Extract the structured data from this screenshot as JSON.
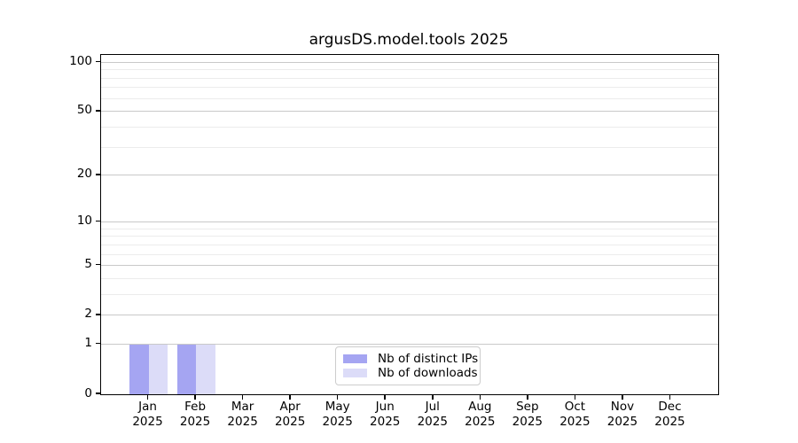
{
  "chart_data": {
    "type": "bar",
    "title": "argusDS.model.tools 2025",
    "categories": [
      "Jan",
      "Feb",
      "Mar",
      "Apr",
      "May",
      "Jun",
      "Jul",
      "Aug",
      "Sep",
      "Oct",
      "Nov",
      "Dec"
    ],
    "category_year": "2025",
    "series": [
      {
        "name": "Nb of distinct IPs",
        "color": "#a5a5f2",
        "values": [
          1,
          1,
          0,
          0,
          0,
          0,
          0,
          0,
          0,
          0,
          0,
          0
        ]
      },
      {
        "name": "Nb of downloads",
        "color": "#dcdcf8",
        "values": [
          1,
          1,
          0,
          0,
          0,
          0,
          0,
          0,
          0,
          0,
          0,
          0
        ]
      }
    ],
    "yscale": "log1p",
    "ylim": [
      0,
      111
    ],
    "y_major_ticks": [
      0,
      1,
      2,
      5,
      10,
      20,
      50,
      100
    ],
    "y_minor_gridlines": [
      3,
      4,
      6,
      7,
      8,
      9,
      30,
      40,
      60,
      70,
      80,
      90
    ],
    "xlabel": "",
    "ylabel": "",
    "grid": true,
    "legend_position": "lower center"
  },
  "colors": {
    "major_grid": "#c9c9c9",
    "minor_grid": "#ececec",
    "spine": "#000000",
    "legend_border": "#cccccc"
  }
}
